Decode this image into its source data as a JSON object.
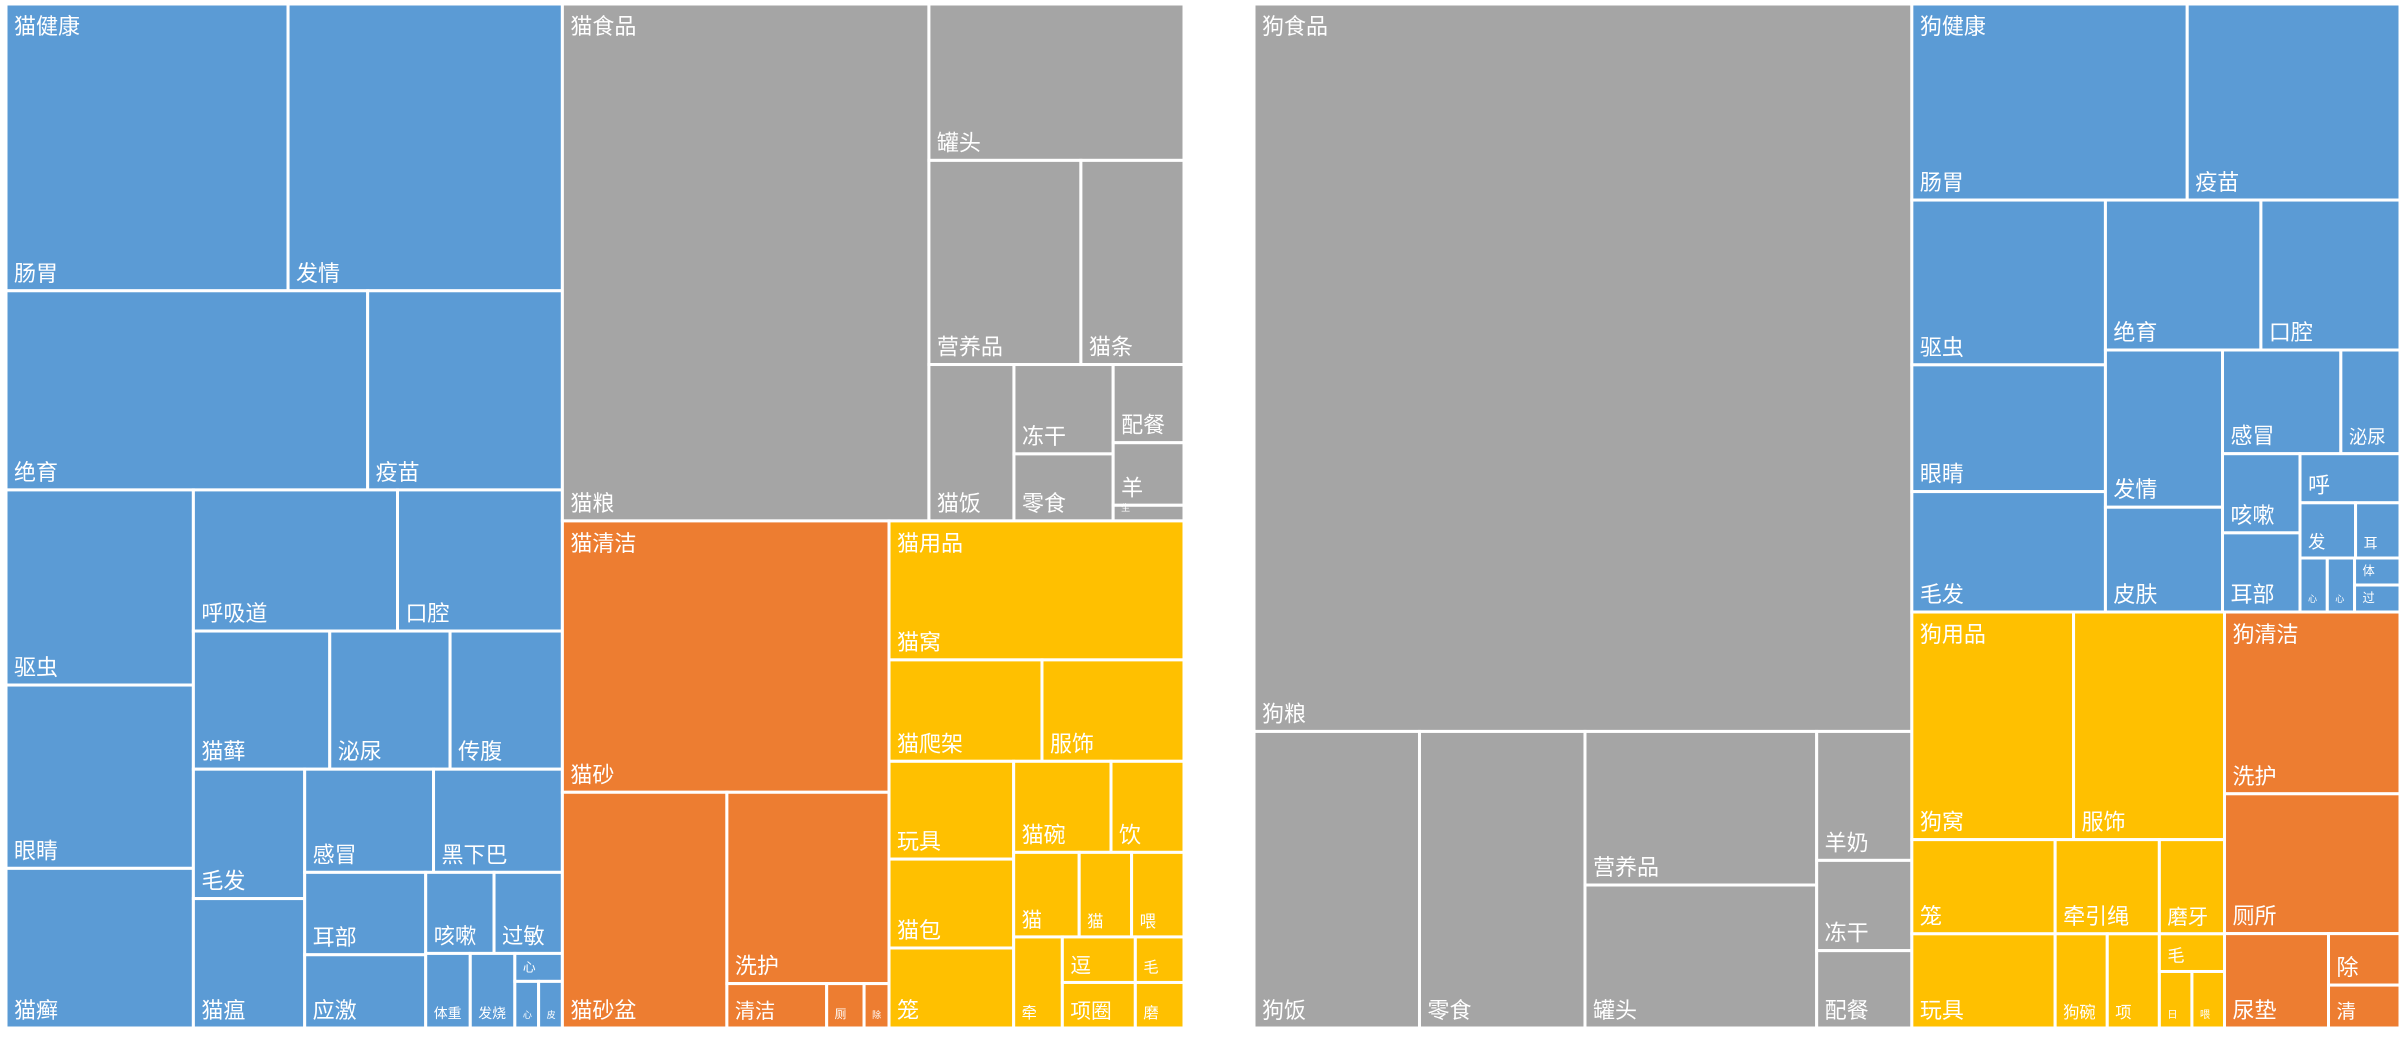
{
  "colors": {
    "health": "#5B9BD5",
    "food": "#A5A5A5",
    "cleaning": "#ED7D31",
    "supplies": "#FFC000",
    "border": "#ffffff",
    "label": "#ffffff"
  },
  "chart_data": [
    {
      "type": "treemap",
      "title": "",
      "groups": [
        {
          "name": "猫健康",
          "color_key": "health",
          "items": [
            {
              "label": "肠胃",
              "value": 7.3
            },
            {
              "label": "发情",
              "value": 7.1
            },
            {
              "label": "绝育",
              "value": 6.5
            },
            {
              "label": "眼睛",
              "value": 3.1
            },
            {
              "label": "驱虫",
              "value": 3.3
            },
            {
              "label": "疫苗",
              "value": 3.5
            },
            {
              "label": "猫癣",
              "value": 2.7
            },
            {
              "label": "猫藓",
              "value": 1.7
            },
            {
              "label": "泌尿",
              "value": 1.5
            },
            {
              "label": "传腹",
              "value": 1.4
            },
            {
              "label": "呼吸道",
              "value": 2.6
            },
            {
              "label": "口腔",
              "value": 2.1
            },
            {
              "label": "毛发",
              "value": 1.3
            },
            {
              "label": "猫瘟",
              "value": 1.3
            },
            {
              "label": "感冒",
              "value": 1.2
            },
            {
              "label": "黑下巴",
              "value": 1.2
            },
            {
              "label": "耳部",
              "value": 0.9
            },
            {
              "label": "应激",
              "value": 0.8
            },
            {
              "label": "咳嗽",
              "value": 0.5
            },
            {
              "label": "体重",
              "value": 0.3
            },
            {
              "label": "发烧",
              "value": 0.3
            },
            {
              "label": "过敏",
              "value": 0.5
            },
            {
              "label": "心",
              "value": 0.12
            },
            {
              "label": "心",
              "value": 0.1
            },
            {
              "label": "皮",
              "value": 0.1
            }
          ]
        },
        {
          "name": "猫食品",
          "color_key": "food",
          "items": [
            {
              "label": "猫粮",
              "value": 17.1
            },
            {
              "label": "罐头",
              "value": 3.6
            },
            {
              "label": "营养品",
              "value": 2.8
            },
            {
              "label": "猫条",
              "value": 1.9
            },
            {
              "label": "猫饭",
              "value": 1.2
            },
            {
              "label": "冻干",
              "value": 0.8
            },
            {
              "label": "零食",
              "value": 0.6
            },
            {
              "label": "配餐",
              "value": 0.5
            },
            {
              "label": "羊",
              "value": 0.4
            },
            {
              "label": "生",
              "value": 0.1
            }
          ]
        },
        {
          "name": "猫清洁",
          "color_key": "cleaning",
          "items": [
            {
              "label": "猫砂",
              "value": 8.0
            },
            {
              "label": "猫砂盆",
              "value": 3.5
            },
            {
              "label": "洗护",
              "value": 2.8
            },
            {
              "label": "清洁",
              "value": 0.4
            },
            {
              "label": "厕",
              "value": 0.15
            },
            {
              "label": "除",
              "value": 0.1
            }
          ]
        },
        {
          "name": "猫用品",
          "color_key": "supplies",
          "items": [
            {
              "label": "猫窝",
              "value": 3.7
            },
            {
              "label": "服饰",
              "value": 1.3
            },
            {
              "label": "猫爬架",
              "value": 1.4
            },
            {
              "label": "玩具",
              "value": 1.1
            },
            {
              "label": "猫包",
              "value": 1.0
            },
            {
              "label": "笼",
              "value": 0.9
            },
            {
              "label": "猫碗",
              "value": 0.8
            },
            {
              "label": "饮",
              "value": 0.6
            },
            {
              "label": "猫",
              "value": 0.5
            },
            {
              "label": "猫",
              "value": 0.4
            },
            {
              "label": "喂",
              "value": 0.4
            },
            {
              "label": "牵",
              "value": 0.4
            },
            {
              "label": "逗",
              "value": 0.3
            },
            {
              "label": "项圈",
              "value": 0.3
            },
            {
              "label": "毛",
              "value": 0.2
            },
            {
              "label": "磨",
              "value": 0.2
            }
          ]
        }
      ]
    },
    {
      "type": "treemap",
      "title": "",
      "groups": [
        {
          "name": "狗食品",
          "color_key": "food",
          "items": [
            {
              "label": "狗粮",
              "value": 39.0
            },
            {
              "label": "狗饭",
              "value": 4.0
            },
            {
              "label": "零食",
              "value": 4.0
            },
            {
              "label": "营养品",
              "value": 2.9
            },
            {
              "label": "罐头",
              "value": 2.7
            },
            {
              "label": "羊奶",
              "value": 1.0
            },
            {
              "label": "冻干",
              "value": 0.7
            },
            {
              "label": "配餐",
              "value": 0.6
            }
          ]
        },
        {
          "name": "狗健康",
          "color_key": "health",
          "items": [
            {
              "label": "肠胃",
              "value": 4.4
            },
            {
              "label": "疫苗",
              "value": 3.4
            },
            {
              "label": "驱虫",
              "value": 2.6
            },
            {
              "label": "毛发",
              "value": 1.9
            },
            {
              "label": "眼睛",
              "value": 2.0
            },
            {
              "label": "绝育",
              "value": 1.9
            },
            {
              "label": "口腔",
              "value": 1.7
            },
            {
              "label": "发情",
              "value": 1.5
            },
            {
              "label": "皮肤",
              "value": 1.0
            },
            {
              "label": "感冒",
              "value": 1.0
            },
            {
              "label": "泌尿",
              "value": 0.5
            },
            {
              "label": "咳嗽",
              "value": 0.5
            },
            {
              "label": "呼",
              "value": 0.4
            },
            {
              "label": "耳部",
              "value": 0.5
            },
            {
              "label": "发",
              "value": 0.25
            },
            {
              "label": "耳",
              "value": 0.2
            },
            {
              "label": "心",
              "value": 0.12
            },
            {
              "label": "体",
              "value": 0.1
            },
            {
              "label": "心",
              "value": 0.12
            },
            {
              "label": "过",
              "value": 0.1
            }
          ]
        },
        {
          "name": "狗用品",
          "color_key": "supplies",
          "items": [
            {
              "label": "狗窝",
              "value": 3.0
            },
            {
              "label": "服饰",
              "value": 2.8
            },
            {
              "label": "笼",
              "value": 1.1
            },
            {
              "label": "玩具",
              "value": 1.1
            },
            {
              "label": "牵引绳",
              "value": 0.8
            },
            {
              "label": "磨牙",
              "value": 0.5
            },
            {
              "label": "狗碗",
              "value": 0.4
            },
            {
              "label": "项",
              "value": 0.4
            },
            {
              "label": "毛",
              "value": 0.2
            },
            {
              "label": "日",
              "value": 0.15
            },
            {
              "label": "喂",
              "value": 0.15
            }
          ]
        },
        {
          "name": "狗清洁",
          "color_key": "cleaning",
          "items": [
            {
              "label": "洗护",
              "value": 2.6
            },
            {
              "label": "厕所",
              "value": 2.0
            },
            {
              "label": "尿垫",
              "value": 0.8
            },
            {
              "label": "除",
              "value": 0.3
            },
            {
              "label": "清",
              "value": 0.25
            }
          ]
        }
      ]
    }
  ]
}
